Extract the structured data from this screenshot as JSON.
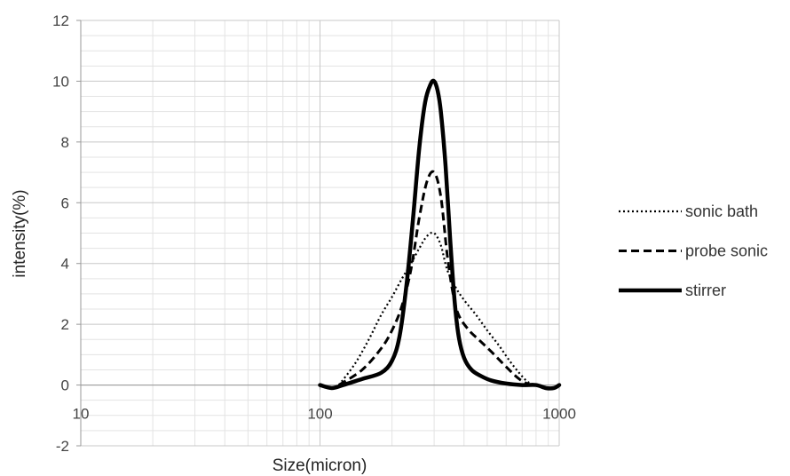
{
  "chart_data": {
    "type": "line",
    "xscale": "log",
    "xlim": [
      10,
      1000
    ],
    "ylim": [
      -2,
      12
    ],
    "xticks": [
      10,
      100,
      1000
    ],
    "yticks": [
      -2,
      0,
      2,
      4,
      6,
      8,
      10,
      12
    ],
    "xlabel": "Size(micron)",
    "ylabel": "intensity(%)",
    "grid": true,
    "legend": "right",
    "series": [
      {
        "name": "sonic bath",
        "style": "dotted",
        "color": "#000000",
        "x": [
          120,
          140,
          160,
          180,
          200,
          220,
          240,
          260,
          280,
          300,
          320,
          340,
          370,
          400,
          450,
          500,
          560,
          620,
          680,
          740,
          800
        ],
        "y": [
          0.0,
          0.7,
          1.5,
          2.3,
          2.9,
          3.5,
          4.0,
          4.5,
          4.9,
          5.0,
          4.6,
          3.8,
          3.2,
          2.8,
          2.3,
          1.8,
          1.3,
          0.8,
          0.4,
          0.1,
          0.0
        ]
      },
      {
        "name": "probe sonic",
        "style": "dashed",
        "color": "#000000",
        "x": [
          120,
          150,
          180,
          200,
          220,
          240,
          260,
          280,
          300,
          320,
          340,
          360,
          380,
          420,
          460,
          520,
          600,
          680,
          760,
          820
        ],
        "y": [
          0.0,
          0.5,
          1.2,
          1.8,
          2.6,
          3.8,
          5.5,
          6.7,
          7.0,
          6.2,
          4.3,
          3.0,
          2.3,
          1.8,
          1.5,
          1.1,
          0.6,
          0.2,
          0.0,
          0.0
        ]
      },
      {
        "name": "stirrer",
        "style": "solid",
        "color": "#000000",
        "x": [
          100,
          112,
          125,
          150,
          180,
          200,
          215,
          230,
          245,
          260,
          275,
          290,
          300,
          310,
          320,
          335,
          350,
          365,
          380,
          400,
          430,
          470,
          520,
          600,
          700,
          800,
          880,
          950,
          1000
        ],
        "y": [
          0.0,
          -0.1,
          0.0,
          0.2,
          0.4,
          0.8,
          1.6,
          3.3,
          5.5,
          7.8,
          9.3,
          9.9,
          10.0,
          9.7,
          9.0,
          7.2,
          4.8,
          2.8,
          1.6,
          0.9,
          0.5,
          0.3,
          0.15,
          0.05,
          0.0,
          0.0,
          -0.1,
          -0.1,
          0.0
        ]
      }
    ]
  }
}
